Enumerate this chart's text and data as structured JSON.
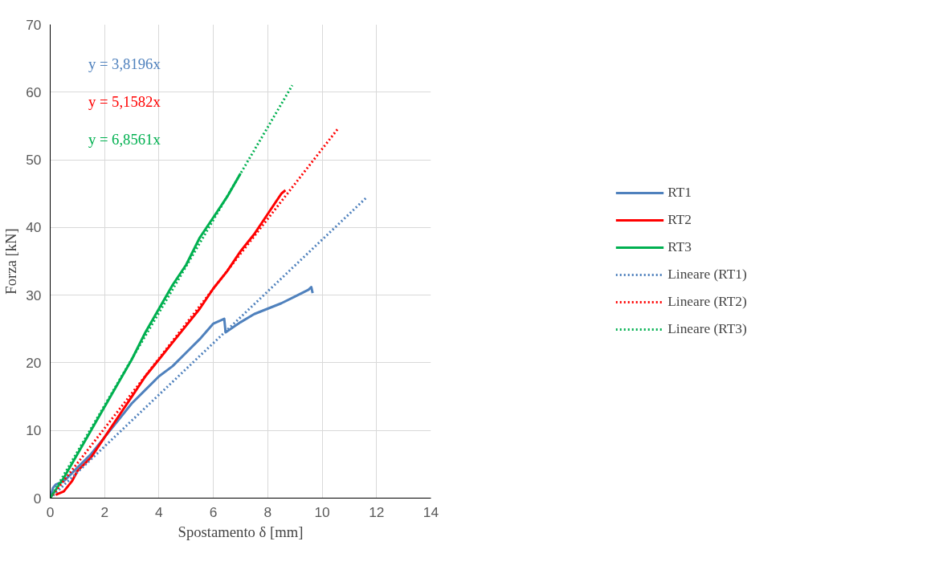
{
  "chart_data": {
    "type": "line",
    "xlabel": "Spostamento δ [mm]",
    "ylabel": "Forza [kN]",
    "xlim": [
      0,
      14
    ],
    "ylim": [
      0,
      70
    ],
    "xticks": [
      0,
      2,
      4,
      6,
      8,
      10,
      12,
      14
    ],
    "yticks": [
      0,
      10,
      20,
      30,
      40,
      50,
      60,
      70
    ],
    "grid": true,
    "legend": "right",
    "line_style": "solid",
    "marker": "none",
    "annotations": [
      "y = 3,8196x",
      "y = 5,1582x",
      "y = 6,8561x"
    ],
    "series": [
      {
        "name": "RT1",
        "color": "#4f81bd",
        "x": [
          0,
          0.1,
          0.2,
          0.5,
          1,
          1.5,
          2,
          2.5,
          3,
          3.5,
          4,
          4.5,
          5,
          5.5,
          6,
          6.4,
          6.45,
          7,
          7.5,
          8,
          8.5,
          9,
          9.5,
          9.6,
          9.65
        ],
        "values": [
          0,
          1.5,
          2,
          2.5,
          4.5,
          6.5,
          9,
          11.5,
          14,
          16,
          18,
          19.5,
          21.5,
          23.5,
          25.8,
          26.5,
          24.5,
          26,
          27.2,
          28,
          28.8,
          29.8,
          30.8,
          31.2,
          30.3
        ]
      },
      {
        "name": "RT2",
        "color": "#ff0000",
        "x": [
          0.2,
          0.5,
          0.8,
          1,
          1.5,
          2,
          2.5,
          3,
          3.5,
          4,
          4.5,
          5,
          5.5,
          6,
          6.5,
          7,
          7.5,
          8,
          8.5,
          8.65
        ],
        "values": [
          0.5,
          1,
          2.5,
          4,
          6,
          9,
          12,
          15,
          18,
          20.5,
          23,
          25.5,
          28,
          31,
          33.5,
          36.5,
          39,
          42,
          45,
          45.5
        ]
      },
      {
        "name": "RT3",
        "color": "#00b050",
        "x": [
          0,
          0.5,
          1,
          1.5,
          2,
          2.5,
          3,
          3.5,
          4,
          4.5,
          5,
          5.5,
          6,
          6.5,
          7
        ],
        "values": [
          0,
          3,
          6.5,
          10,
          13.5,
          17,
          20.5,
          24.5,
          28,
          31.5,
          34.5,
          38.5,
          41.5,
          44.5,
          48
        ]
      },
      {
        "name": "Lineare (RT1)",
        "color": "#4f81bd",
        "line_style": "dotted",
        "x": [
          0,
          11.65
        ],
        "values": [
          0,
          44.5
        ]
      },
      {
        "name": "Lineare (RT2)",
        "color": "#ff0000",
        "line_style": "dotted",
        "x": [
          0,
          10.6
        ],
        "values": [
          0,
          54.7
        ]
      },
      {
        "name": "Lineare (RT3)",
        "color": "#00b050",
        "line_style": "dotted",
        "x": [
          0,
          8.9
        ],
        "values": [
          0,
          61
        ]
      }
    ]
  }
}
